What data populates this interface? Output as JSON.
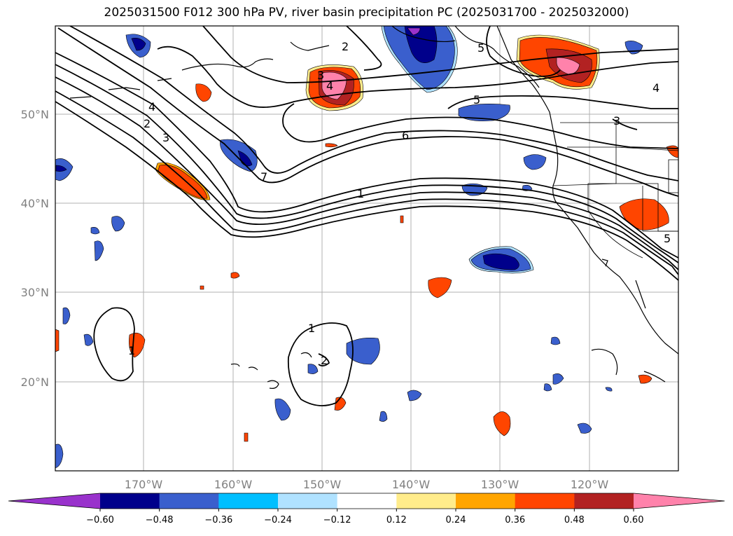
{
  "title": "2025031500 F012 300 hPa PV, river basin precipitation PC (2025031700 - 2025032000)",
  "lat_labels": [
    "50°N",
    "40°N",
    "30°N",
    "20°N"
  ],
  "lon_labels": [
    "170°W",
    "160°W",
    "150°W",
    "140°W",
    "130°W",
    "120°W"
  ],
  "colorbar": {
    "colors": [
      "#9932cc",
      "#00008b",
      "#3a5fcd",
      "#00bfff",
      "#b0e2ff",
      "#ffffff",
      "#ffec8b",
      "#ffa500",
      "#ff4500",
      "#b22222",
      "#ff82ab"
    ],
    "tick_labels": [
      "−0.60",
      "−0.48",
      "−0.36",
      "−0.24",
      "−0.12",
      "0.12",
      "0.24",
      "0.36",
      "0.48",
      "0.60"
    ]
  },
  "contour_labels": [
    "2",
    "3",
    "4",
    "2",
    "3",
    "4",
    "5",
    "5",
    "4",
    "6",
    "7",
    "1",
    "3",
    "5",
    "1",
    "2",
    "1"
  ]
}
